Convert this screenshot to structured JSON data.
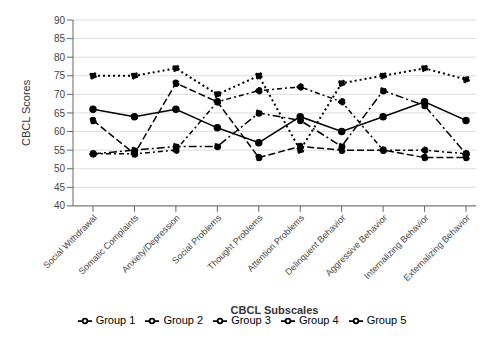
{
  "chart_data": {
    "type": "line",
    "xlabel": "CBCL Subscales",
    "ylabel": "CBCL Scores",
    "categories": [
      "Social Withdrawal",
      "Somatic Complaints",
      "Anxiety/Depression",
      "Social Problems",
      "Thought Problems",
      "Attention Problems",
      "Delinquent Behavior",
      "Aggressive Behavior",
      "Internalizing Behavior",
      "Externalizing Behavior"
    ],
    "series": [
      {
        "name": "Group 1",
        "color": "black",
        "line_style": "solid",
        "marker": "circle",
        "values": [
          66,
          64,
          66,
          61,
          57,
          64,
          60,
          64,
          68,
          63
        ]
      },
      {
        "name": "Group 2",
        "color": "black",
        "line_style": "dashed",
        "marker": "circle",
        "values": [
          63,
          54,
          73,
          68,
          53,
          56,
          55,
          55,
          53,
          53
        ]
      },
      {
        "name": "Group 3",
        "color": "black",
        "line_style": "dashdot",
        "marker": "circle",
        "values": [
          54,
          55,
          56,
          56,
          65,
          63,
          56,
          71,
          67,
          54
        ]
      },
      {
        "name": "Group 4",
        "color": "black",
        "line_style": "dashdot",
        "marker": "circle",
        "values": [
          54,
          54,
          55,
          68,
          71,
          72,
          68,
          55,
          55,
          54
        ]
      },
      {
        "name": "Group 5",
        "color": "black",
        "line_style": "dotted",
        "marker": "circle",
        "values": [
          75,
          75,
          77,
          70,
          75,
          55,
          73,
          75,
          77,
          74
        ]
      }
    ],
    "ylim": [
      40,
      90
    ],
    "yticks": [
      40,
      45,
      50,
      55,
      60,
      65,
      70,
      75,
      80,
      85,
      90
    ],
    "grid": true,
    "legend": "bottom"
  }
}
